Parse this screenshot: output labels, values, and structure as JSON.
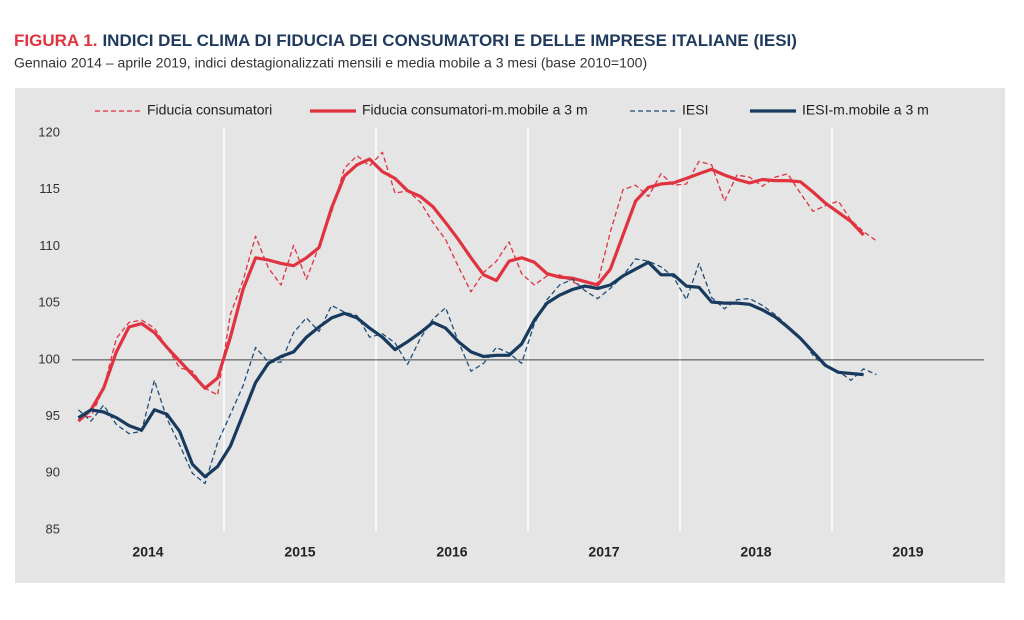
{
  "chart_data": {
    "type": "line",
    "title_prefix": "FIGURA 1.",
    "title": "INDICI DEL CLIMA DI FIDUCIA DEI CONSUMATORI E DELLE IMPRESE ITALIANE (IESI)",
    "subtitle": "Gennaio 2014 – aprile 2019, indici destagionalizzati mensili e media mobile a 3 mesi (base 2010=100)",
    "x": [
      2014.042,
      2014.125,
      2014.208,
      2014.292,
      2014.375,
      2014.458,
      2014.542,
      2014.625,
      2014.708,
      2014.792,
      2014.875,
      2014.958,
      2015.042,
      2015.125,
      2015.208,
      2015.292,
      2015.375,
      2015.458,
      2015.542,
      2015.625,
      2015.708,
      2015.792,
      2015.875,
      2015.958,
      2016.042,
      2016.125,
      2016.208,
      2016.292,
      2016.375,
      2016.458,
      2016.542,
      2016.625,
      2016.708,
      2016.792,
      2016.875,
      2016.958,
      2017.042,
      2017.125,
      2017.208,
      2017.292,
      2017.375,
      2017.458,
      2017.542,
      2017.625,
      2017.708,
      2017.792,
      2017.875,
      2017.958,
      2018.042,
      2018.125,
      2018.208,
      2018.292,
      2018.375,
      2018.458,
      2018.542,
      2018.625,
      2018.708,
      2018.792,
      2018.875,
      2018.958,
      2019.042,
      2019.125,
      2019.208,
      2019.292
    ],
    "series": [
      {
        "name": "Fiducia consumatori",
        "color": "#e0333f",
        "style": "dashed",
        "values": [
          94.9,
          95.0,
          97.5,
          101.9,
          103.3,
          103.5,
          102.8,
          101.1,
          99.3,
          99.0,
          97.5,
          96.9,
          104.0,
          107.0,
          110.9,
          108.1,
          106.6,
          110.1,
          107.1,
          110.0,
          113.0,
          116.9,
          118.0,
          117.1,
          118.3,
          114.7,
          114.9,
          113.9,
          112.1,
          110.6,
          108.2,
          106.0,
          107.7,
          108.7,
          110.4,
          107.6,
          106.6,
          107.4,
          107.5,
          106.9,
          106.3,
          106.8,
          111.3,
          115.0,
          115.4,
          114.4,
          116.4,
          115.4,
          115.5,
          117.5,
          117.2,
          114.0,
          116.3,
          116.1,
          115.3,
          116.1,
          116.4,
          114.7,
          113.1,
          113.6,
          114.0,
          112.3,
          111.3,
          110.5
        ]
      },
      {
        "name": "Fiducia consumatori-m.mobile a 3 m",
        "color": "#e0333f",
        "style": "solid",
        "values": [
          94.6,
          95.6,
          97.5,
          100.7,
          102.9,
          103.2,
          102.4,
          101.1,
          99.9,
          98.7,
          97.5,
          98.4,
          102.0,
          106.2,
          109.0,
          108.8,
          108.5,
          108.3,
          109.0,
          109.9,
          113.4,
          116.2,
          117.2,
          117.7,
          116.6,
          116.0,
          114.9,
          114.4,
          113.5,
          112.1,
          110.6,
          109.0,
          107.5,
          107.0,
          108.7,
          109.0,
          108.6,
          107.6,
          107.3,
          107.2,
          106.9,
          106.6,
          108.0,
          111.0,
          114.0,
          115.2,
          115.5,
          115.6,
          116.0,
          116.4,
          116.8,
          116.3,
          115.9,
          115.6,
          115.9,
          115.8,
          115.8,
          115.7,
          114.8,
          113.8,
          113.0,
          112.2,
          111.0,
          null
        ]
      },
      {
        "name": "IESI",
        "color": "#1f4e79",
        "style": "dashed",
        "values": [
          95.6,
          94.6,
          96.0,
          94.3,
          93.5,
          93.7,
          98.2,
          94.8,
          92.5,
          90.0,
          89.1,
          92.7,
          95.2,
          97.7,
          101.1,
          99.8,
          99.8,
          102.4,
          103.7,
          102.5,
          104.8,
          104.2,
          103.9,
          102.0,
          102.3,
          101.5,
          99.6,
          101.9,
          103.6,
          104.6,
          101.6,
          99.0,
          99.7,
          101.1,
          100.6,
          99.7,
          103.2,
          105.3,
          106.6,
          107.1,
          106.1,
          105.4,
          106.3,
          107.4,
          108.9,
          108.7,
          108.2,
          107.3,
          105.3,
          108.5,
          105.5,
          104.5,
          105.3,
          105.4,
          104.8,
          104.0,
          103.0,
          102.0,
          100.4,
          99.4,
          99.0,
          98.2,
          99.2,
          98.7
        ]
      },
      {
        "name": "IESI-m.mobile a 3 m",
        "color": "#173a5e",
        "style": "solid",
        "values": [
          94.9,
          95.6,
          95.4,
          94.9,
          94.2,
          93.8,
          95.6,
          95.2,
          93.7,
          90.8,
          89.7,
          90.6,
          92.4,
          95.2,
          98.0,
          99.7,
          100.3,
          100.7,
          102.0,
          102.9,
          103.7,
          104.1,
          103.7,
          102.8,
          102.0,
          100.9,
          101.6,
          102.4,
          103.3,
          102.8,
          101.6,
          100.7,
          100.3,
          100.4,
          100.4,
          101.4,
          103.5,
          105.0,
          105.7,
          106.2,
          106.5,
          106.3,
          106.6,
          107.4,
          108.0,
          108.6,
          107.5,
          107.5,
          106.5,
          106.4,
          105.1,
          105.0,
          105.0,
          104.9,
          104.4,
          103.8,
          102.9,
          101.9,
          100.7,
          99.5,
          98.9,
          98.8,
          98.7,
          null
        ]
      }
    ],
    "year_labels": [
      "2014",
      "2015",
      "2016",
      "2017",
      "2018",
      "2019"
    ],
    "xlim": [
      2014,
      2020
    ],
    "xgrid": [
      2015,
      2016,
      2017,
      2018,
      2019
    ],
    "ylim": [
      85,
      120
    ],
    "yticks": [
      85,
      90,
      95,
      100,
      105,
      110,
      115,
      120
    ],
    "reference_line": 100,
    "legend": "top"
  }
}
